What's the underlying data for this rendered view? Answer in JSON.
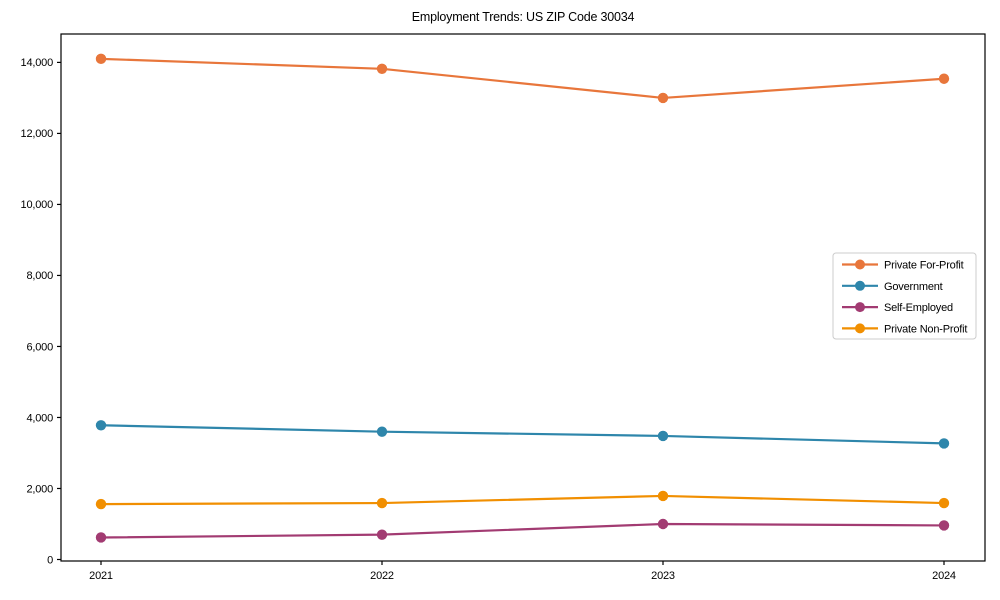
{
  "chart_data": {
    "type": "line",
    "title": "Employment Trends: US ZIP Code 30034",
    "xlabel": "",
    "ylabel": "",
    "x": [
      2021,
      2022,
      2023,
      2024
    ],
    "series": [
      {
        "name": "Private For-Profit",
        "color": "#E8763B",
        "values": [
          14100,
          13820,
          13000,
          13540
        ]
      },
      {
        "name": "Government",
        "color": "#2E86AB",
        "values": [
          3780,
          3600,
          3480,
          3270
        ]
      },
      {
        "name": "Self-Employed",
        "color": "#A23B72",
        "values": [
          620,
          700,
          1000,
          960
        ]
      },
      {
        "name": "Private Non-Profit",
        "color": "#F18F01",
        "values": [
          1560,
          1590,
          1790,
          1590
        ]
      }
    ],
    "ylim": [
      0,
      14800
    ],
    "yticks": [
      0,
      2000,
      4000,
      6000,
      8000,
      10000,
      12000,
      14000
    ],
    "xtick_labels": [
      "2021",
      "2022",
      "2023",
      "2024"
    ],
    "grid": false,
    "marker": "circle",
    "legend_position": "center right",
    "axis_color": "#000000",
    "tick_label_color": "#000000",
    "legend_border_color": "#cccccc",
    "legend_background": "#ffffff"
  }
}
